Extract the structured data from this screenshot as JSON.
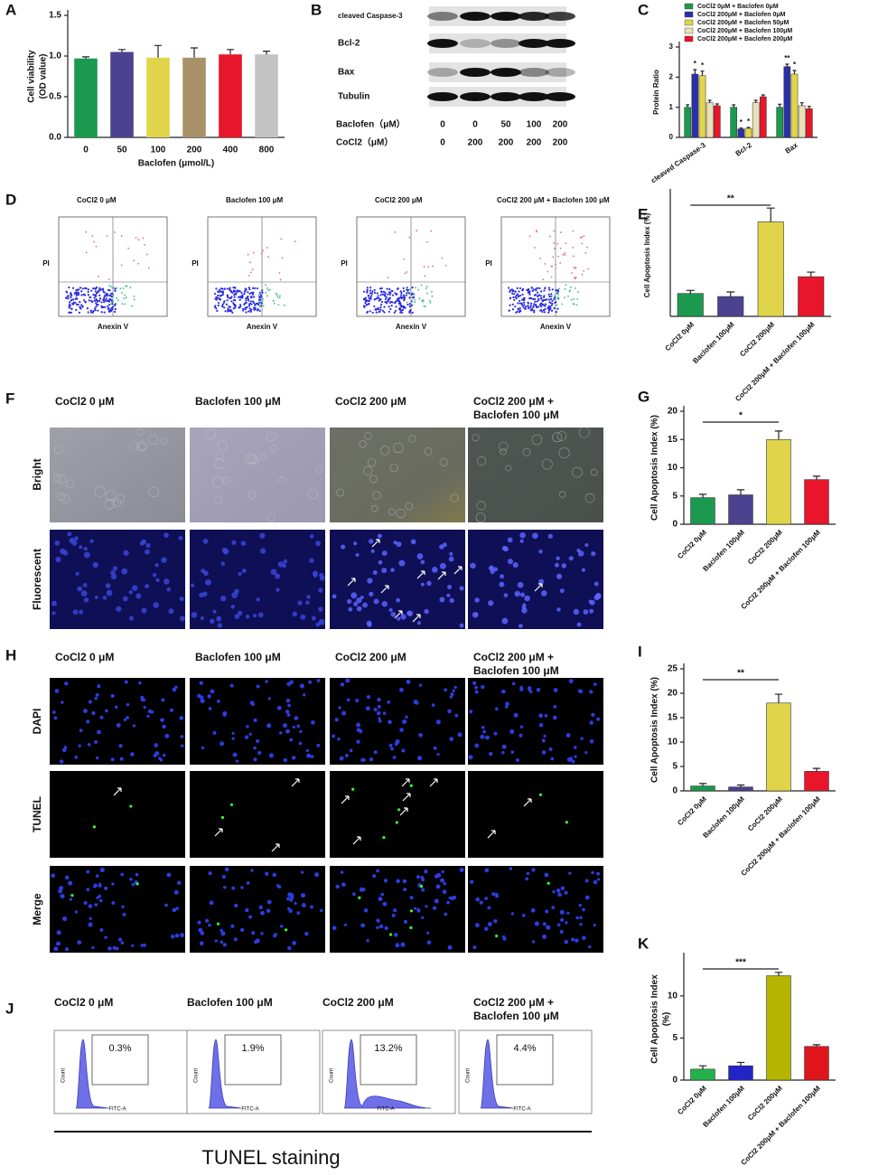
{
  "chart_data": [
    {
      "type": "bar",
      "label": "A",
      "ylabel": [
        "Cell viability",
        "(OD value)"
      ],
      "xlabel": "Baclofen (μmol/L)",
      "categories": [
        "0",
        "50",
        "100",
        "200",
        "400",
        "800"
      ],
      "values": [
        0.97,
        1.05,
        0.98,
        0.98,
        1.02,
        1.02
      ],
      "errors": [
        0.02,
        0.03,
        0.15,
        0.12,
        0.06,
        0.04
      ],
      "colors": [
        "#1b9a4f",
        "#4b4290",
        "#e0d44a",
        "#a99269",
        "#e8152b",
        "#c3c3c3"
      ],
      "ylim": [
        0,
        1.5
      ],
      "yticks": [
        {
          "value": 0,
          "label": "0.0"
        },
        {
          "value": 0.5,
          "label": "0.5"
        },
        {
          "value": 1,
          "label": "1.0"
        },
        {
          "value": 1.5,
          "label": "1.5"
        }
      ]
    },
    {
      "type": "bar",
      "label": "C",
      "ylabel": "Protein Ratio",
      "categories": [
        "cleaved Caspase-3",
        "Bcl-2",
        "Bax"
      ],
      "series": [
        {
          "name": "CoCl2 0μM + Baclofen 0μM",
          "color": "#1b9a4f",
          "values": [
            1,
            1,
            1
          ],
          "errors": [
            0.08,
            0.08,
            0.1
          ]
        },
        {
          "name": "CoCl2 200μM + Baclofen 0μM",
          "color": "#2b2fa8",
          "values": [
            2.1,
            0.28,
            2.35
          ],
          "errors": [
            0.15,
            0.03,
            0.08
          ],
          "sig": [
            "*",
            "*",
            "**"
          ]
        },
        {
          "name": "CoCl2 200μM + Baclofen 50μM",
          "color": "#e0d44a",
          "values": [
            2.05,
            0.3,
            2.1
          ],
          "errors": [
            0.15,
            0.03,
            0.12
          ],
          "sig": [
            "*",
            "*",
            "*"
          ]
        },
        {
          "name": "CoCl2 200μM + Baclofen 100μM",
          "color": "#e9e0b4",
          "values": [
            1.15,
            1.15,
            1.05
          ],
          "errors": [
            0.08,
            0.08,
            0.1
          ]
        },
        {
          "name": "CoCl2 200μM + Baclofen 200μM",
          "color": "#e8152b",
          "values": [
            1.05,
            1.35,
            0.95
          ],
          "errors": [
            0.06,
            0.06,
            0.08
          ]
        }
      ],
      "ylim": [
        0,
        3
      ],
      "yticks": [
        0,
        1,
        2,
        3
      ]
    },
    {
      "type": "bar",
      "label": "E",
      "ylabel": "Cell Apoptosis Index (%)",
      "categories": [
        "CoCl2 0μM",
        "Baclofen 100μM",
        "CoCl2 200μM",
        "CoCl2 200μM + Baclofen 100μM"
      ],
      "values": [
        1.5,
        1.3,
        6.2,
        2.6
      ],
      "errors": [
        0.2,
        0.3,
        0.9,
        0.3
      ],
      "colors": [
        "#1b9a4f",
        "#4b4290",
        "#e0d44a",
        "#e8152b"
      ],
      "ylim": [
        0,
        8
      ],
      "significance": {
        "label": "**",
        "categories": [
          0,
          2
        ]
      }
    },
    {
      "type": "bar",
      "label": "G",
      "ylabel": "Cell Apoptosis Index (%)",
      "categories": [
        "CoCl2 0μM",
        "Baclofen 100μM",
        "CoCl2 200μM",
        "CoCl2 200μM + Baclofen 100μM"
      ],
      "values": [
        4.7,
        5.2,
        15,
        7.9
      ],
      "errors": [
        0.6,
        0.9,
        1.5,
        0.6
      ],
      "colors": [
        "#1b9a4f",
        "#4b4290",
        "#e0d44a",
        "#e8152b"
      ],
      "ylim": [
        0,
        20
      ],
      "yticks": [
        0,
        5,
        10,
        15,
        20
      ],
      "significance": {
        "label": "*",
        "categories": [
          0,
          2
        ]
      }
    },
    {
      "type": "bar",
      "label": "I",
      "ylabel": "Cell Apoptosis Index (%)",
      "categories": [
        "CoCl2 0μM",
        "Baclofen 100μM",
        "CoCl2 200μM",
        "CoCl2 200μM + Baclofen 100μM"
      ],
      "values": [
        1,
        0.8,
        18,
        4
      ],
      "errors": [
        0.5,
        0.4,
        1.8,
        0.6
      ],
      "colors": [
        "#1b9a4f",
        "#4b4290",
        "#e0d44a",
        "#e8152b"
      ],
      "ylim": [
        0,
        25
      ],
      "yticks": [
        0,
        5,
        10,
        15,
        20,
        25
      ],
      "significance": {
        "label": "**",
        "categories": [
          0,
          2
        ]
      }
    },
    {
      "type": "bar",
      "label": "K",
      "ylabel": [
        "Cell Apoptosis Index",
        "(%)"
      ],
      "categories": [
        "CoCl2 0μM",
        "Baclofen 100μM",
        "CoCl2 200μM",
        "CoCl2 200μM + Baclofen 100μM"
      ],
      "values": [
        1.3,
        1.7,
        12.4,
        4.0
      ],
      "errors": [
        0.4,
        0.4,
        0.4,
        0.2
      ],
      "colors": [
        "#22b24c",
        "#2323c8",
        "#b5b500",
        "#e0151b"
      ],
      "ylim": [
        0,
        14.5
      ],
      "yticks": [
        0,
        5,
        10
      ],
      "significance": {
        "label": "***",
        "categories": [
          0,
          2
        ]
      }
    }
  ],
  "panels": [
    {
      "label": "B",
      "bands": [
        "cleaved Caspase-3",
        "Bcl-2",
        "Bax",
        "Tubulin"
      ],
      "rows": [
        {
          "name": "Baclofen（μM）",
          "values": [
            "0",
            "0",
            "50",
            "100",
            "200"
          ]
        },
        {
          "name": "CoCl2（μM）",
          "values": [
            "0",
            "200",
            "200",
            "200",
            "200"
          ]
        }
      ]
    },
    {
      "label": "D",
      "conditions": [
        "CoCl2 0 μM",
        "Baclofen 100 μM",
        "CoCl2 200 μM",
        "CoCl2 200 μM + Baclofen 100 μM"
      ],
      "y_label": "PI",
      "x_label": "Anexin V"
    },
    {
      "label": "F",
      "conditions": [
        "CoCl2 0 μM",
        "Baclofen 100 μM",
        "CoCl2 200 μM",
        "CoCl2 200 μM + Baclofen 100 μM"
      ],
      "rows": [
        "Bright",
        "Fluorescent"
      ]
    },
    {
      "label": "H",
      "conditions": [
        "CoCl2 0 μM",
        "Baclofen 100 μM",
        "CoCl2 200 μM",
        "CoCl2 200 μM + Baclofen 100 μM"
      ],
      "rows": [
        "DAPI",
        "TUNEL",
        "Merge"
      ]
    },
    {
      "label": "J",
      "conditions": [
        "CoCl2 0 μM",
        "Baclofen 100 μM",
        "CoCl2 200 μM",
        "CoCl2 200 μM + Baclofen 100 μM"
      ],
      "percentages": [
        "0.3%",
        "1.9%",
        "13.2%",
        "4.4%"
      ],
      "y_label": "Count",
      "x_label": "FITC-A",
      "caption": "TUNEL staining"
    }
  ]
}
